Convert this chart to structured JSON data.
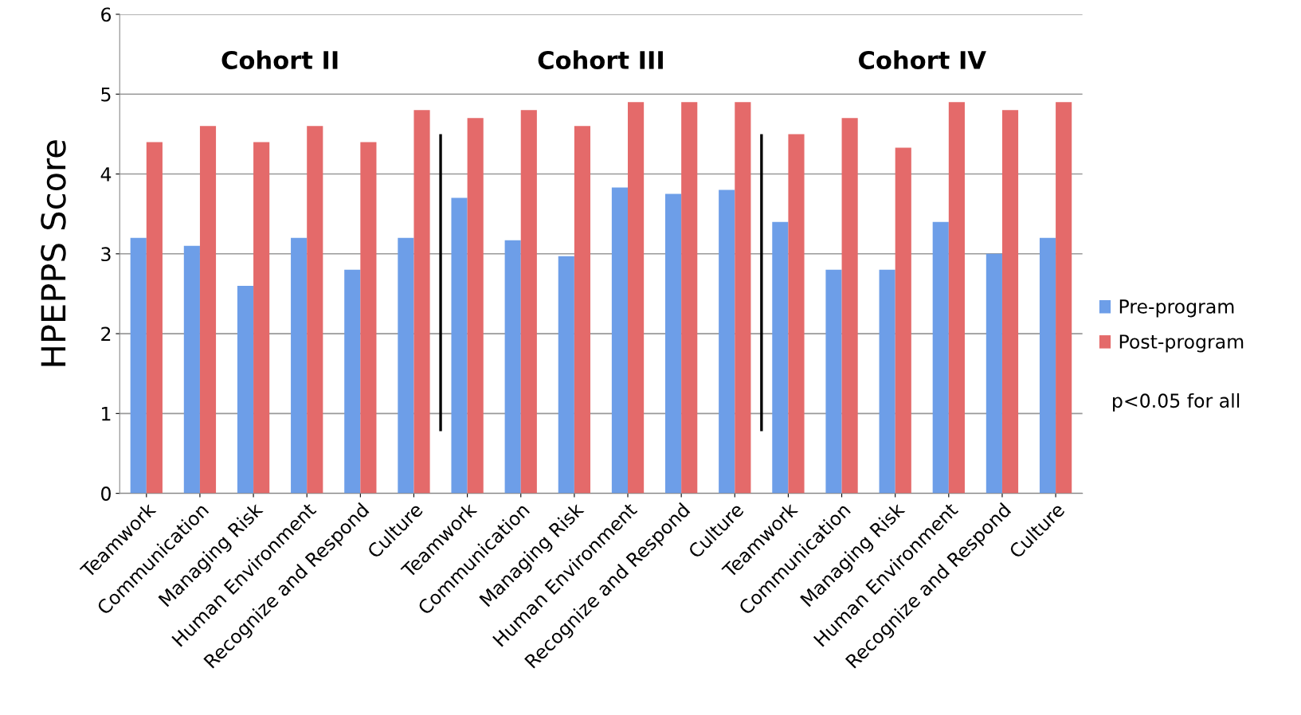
{
  "chart_data": {
    "type": "bar",
    "ylabel": "HPEPPS Score",
    "categories": [
      "Teamwork",
      "Communication",
      "Managing Risk",
      "Human Environment",
      "Recognize and Respond",
      "Culture",
      "Teamwork",
      "Communication",
      "Managing Risk",
      "Human Environment",
      "Recognize and Respond",
      "Culture",
      "Teamwork",
      "Communication",
      "Managing Risk",
      "Human Environment",
      "Recognize and Respond",
      "Culture"
    ],
    "series": [
      {
        "name": "Pre-program",
        "color": "#6d9ee8",
        "values": [
          3.2,
          3.1,
          2.6,
          3.2,
          2.8,
          3.2,
          3.7,
          3.17,
          2.97,
          3.83,
          3.75,
          3.8,
          3.4,
          2.8,
          2.8,
          3.4,
          3.0,
          3.2
        ]
      },
      {
        "name": "Post-program",
        "color": "#e46a6a",
        "values": [
          4.4,
          4.6,
          4.4,
          4.6,
          4.4,
          4.8,
          4.7,
          4.8,
          4.6,
          4.9,
          4.9,
          4.9,
          4.5,
          4.7,
          4.33,
          4.9,
          4.8,
          4.9
        ]
      }
    ],
    "ylim": [
      0,
      6
    ],
    "yticks": [
      0,
      1,
      2,
      3,
      4,
      5,
      6
    ],
    "grid": "y",
    "legend": "right",
    "annotations": [
      "Cohort II",
      "Cohort III",
      "Cohort IV",
      "p<0.05 for all"
    ]
  }
}
